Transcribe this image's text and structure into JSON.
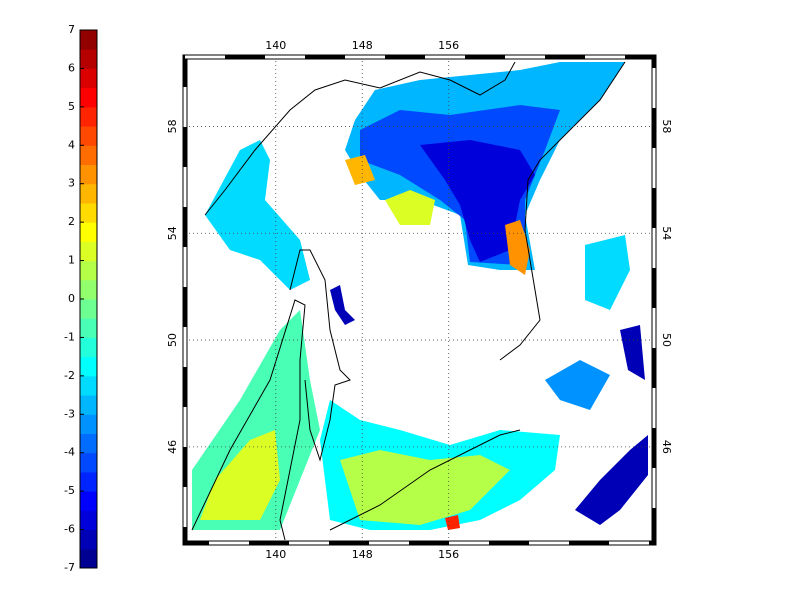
{
  "colorbar": {
    "clim": [
      -7,
      7
    ],
    "ticks": [
      -7,
      -6,
      -5,
      -4,
      -3,
      -2,
      -1,
      0,
      1,
      2,
      3,
      4,
      5,
      6,
      7
    ],
    "colors": [
      "#000092",
      "#0000b6",
      "#0000db",
      "#0000ff",
      "#0024ff",
      "#0049ff",
      "#006dff",
      "#0092ff",
      "#00b6ff",
      "#00dbff",
      "#00ffff",
      "#24ffdb",
      "#49ffb6",
      "#6dff92",
      "#92ff6d",
      "#b6ff49",
      "#dbff24",
      "#ffff00",
      "#ffdb00",
      "#ffb600",
      "#ff9200",
      "#ff6d00",
      "#ff4900",
      "#ff2400",
      "#ff0000",
      "#db0000",
      "#b60000",
      "#920000"
    ]
  },
  "map": {
    "xlim": [
      131.6,
      175
    ],
    "ylim": [
      42.4,
      60.6
    ],
    "xticks": [
      140,
      148,
      156
    ],
    "yticks": [
      46,
      50,
      54,
      58
    ],
    "grid": true
  }
}
